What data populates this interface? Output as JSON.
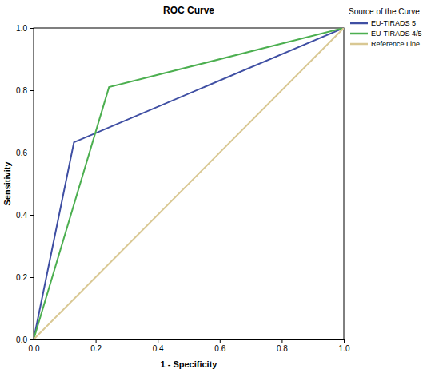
{
  "chart_data": {
    "type": "line",
    "title": "ROC Curve",
    "x_label": "1 - Specificity",
    "y_label": "Sensitivity",
    "legend_title": "Source of the Curve",
    "legend": "right",
    "grid": false,
    "xlim": [
      0,
      1
    ],
    "ylim": [
      0,
      1
    ],
    "xticks": [
      {
        "value": 0,
        "label": "0.0"
      },
      0.2,
      0.4,
      0.6,
      0.8,
      {
        "value": 1,
        "label": "1.0"
      }
    ],
    "yticks": [
      {
        "value": 0,
        "label": "0.0"
      },
      0.2,
      0.4,
      0.6,
      0.8,
      {
        "value": 1,
        "label": "1.0"
      }
    ],
    "series": [
      {
        "name": "EU-TIRADS 5",
        "color": "#3f4fa3",
        "x": [
          0,
          0.13,
          1
        ],
        "values": [
          0,
          0.633,
          1
        ]
      },
      {
        "name": "EU-TIRADS 4/5",
        "color": "#4caf50",
        "x": [
          0,
          0.243,
          1
        ],
        "values": [
          0,
          0.81,
          1
        ]
      },
      {
        "name": "Reference Line",
        "color": "#d9c893",
        "x": [
          0,
          1
        ],
        "values": [
          0,
          1
        ]
      }
    ]
  }
}
